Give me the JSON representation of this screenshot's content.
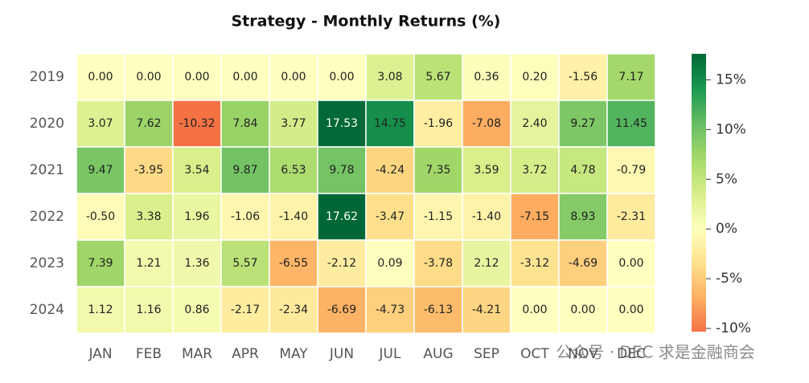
{
  "chart_data": {
    "type": "heatmap",
    "title": "Strategy - Monthly Returns (%)",
    "categories": [
      "JAN",
      "FEB",
      "MAR",
      "APR",
      "MAY",
      "JUN",
      "JUL",
      "AUG",
      "SEP",
      "OCT",
      "NOV",
      "DEC"
    ],
    "rows": [
      "2019",
      "2020",
      "2021",
      "2022",
      "2023",
      "2024"
    ],
    "values": [
      [
        0,
        0,
        0,
        0,
        0,
        0,
        3.08,
        5.67,
        0.36,
        0.2,
        -1.56,
        7.17
      ],
      [
        3.07,
        7.62,
        -10.32,
        7.84,
        3.77,
        17.53,
        14.75,
        -1.96,
        -7.08,
        2.4,
        9.27,
        11.45
      ],
      [
        9.47,
        -3.95,
        3.54,
        9.87,
        6.53,
        9.78,
        -4.24,
        7.35,
        3.59,
        3.72,
        4.78,
        -0.79
      ],
      [
        -0.5,
        3.38,
        1.96,
        -1.06,
        -1.4,
        17.62,
        -3.47,
        -1.15,
        -1.4,
        -7.15,
        8.93,
        -2.31
      ],
      [
        7.39,
        1.21,
        1.36,
        5.57,
        -6.55,
        -2.12,
        0.09,
        -3.78,
        2.12,
        -3.12,
        -4.69,
        0
      ],
      [
        1.12,
        1.16,
        0.86,
        -2.17,
        -2.34,
        -6.69,
        -4.73,
        -6.13,
        -4.21,
        0,
        0,
        0
      ]
    ],
    "value_labels": [
      [
        "0.00",
        "0.00",
        "0.00",
        "0.00",
        "0.00",
        "0.00",
        "3.08",
        "5.67",
        "0.36",
        "0.20",
        "-1.56",
        "7.17"
      ],
      [
        "3.07",
        "7.62",
        "-10.32",
        "7.84",
        "3.77",
        "17.53",
        "14.75",
        "-1.96",
        "-7.08",
        "2.40",
        "9.27",
        "11.45"
      ],
      [
        "9.47",
        "-3.95",
        "3.54",
        "9.87",
        "6.53",
        "9.78",
        "-4.24",
        "7.35",
        "3.59",
        "3.72",
        "4.78",
        "-0.79"
      ],
      [
        "-0.50",
        "3.38",
        "1.96",
        "-1.06",
        "-1.40",
        "17.62",
        "-3.47",
        "-1.15",
        "-1.40",
        "-7.15",
        "8.93",
        "-2.31"
      ],
      [
        "7.39",
        "1.21",
        "1.36",
        "5.57",
        "-6.55",
        "-2.12",
        "0.09",
        "-3.78",
        "2.12",
        "-3.12",
        "-4.69",
        "0.00"
      ],
      [
        "1.12",
        "1.16",
        "0.86",
        "-2.17",
        "-2.34",
        "-6.69",
        "-4.73",
        "-6.13",
        "-4.21",
        "0.00",
        "0.00",
        "0.00"
      ]
    ],
    "colormap": [
      "#a50026",
      "#d73027",
      "#f46d43",
      "#fdae61",
      "#fee08b",
      "#ffffbf",
      "#d9ef8b",
      "#a6d96a",
      "#66bd63",
      "#1a9850",
      "#006837"
    ],
    "clim": [
      -10.32,
      17.62
    ],
    "cticks": [
      {
        "value": -10,
        "label": "-10%"
      },
      {
        "value": -5,
        "label": "-5%"
      },
      {
        "value": 0,
        "label": "0%"
      },
      {
        "value": 5,
        "label": "5%"
      },
      {
        "value": 10,
        "label": "10%"
      },
      {
        "value": 15,
        "label": "15%"
      }
    ]
  },
  "watermark": "公众号 · DEC 求是金融商会"
}
